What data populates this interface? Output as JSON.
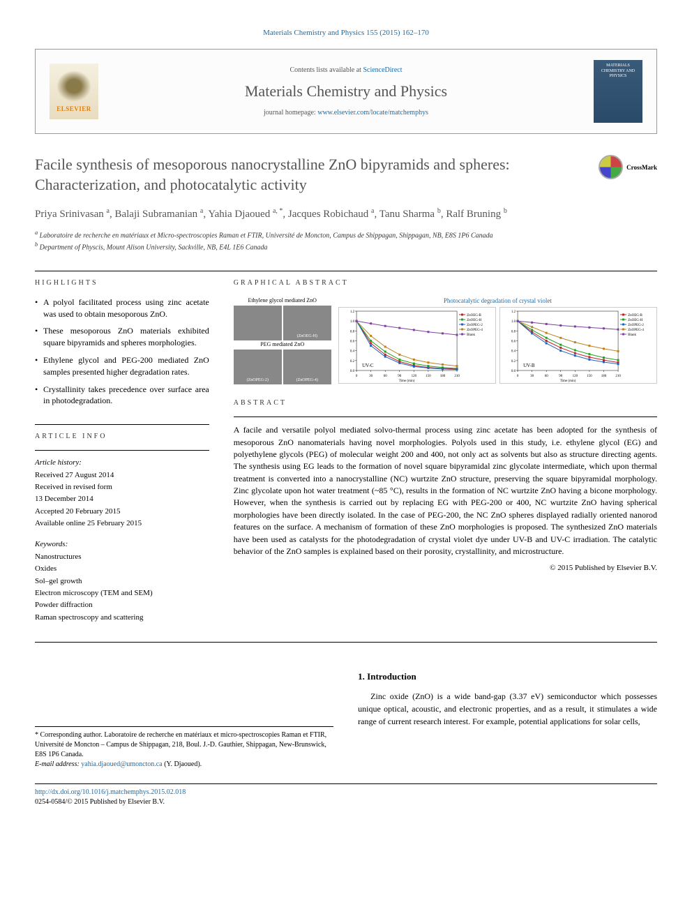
{
  "citation": "Materials Chemistry and Physics 155 (2015) 162–170",
  "header": {
    "contents_prefix": "Contents lists available at ",
    "contents_link": "ScienceDirect",
    "journal_name": "Materials Chemistry and Physics",
    "homepage_prefix": "journal homepage: ",
    "homepage_link": "www.elsevier.com/locate/matchemphys",
    "elsevier": "ELSEVIER",
    "cover_text": "MATERIALS CHEMISTRY AND PHYSICS"
  },
  "article": {
    "title": "Facile synthesis of mesoporous nanocrystalline ZnO bipyramids and spheres: Characterization, and photocatalytic activity",
    "crossmark": "CrossMark",
    "authors_html": "Priya Srinivasan <sup>a</sup>, Balaji Subramanian <sup>a</sup>, Yahia Djaoued <sup>a, *</sup>, Jacques Robichaud <sup>a</sup>, Tanu Sharma <sup>b</sup>, Ralf Bruning <sup>b</sup>",
    "affiliations": {
      "a": "Laboratoire de recherche en matériaux et Micro-spectroscopies Raman et FTIR, Université de Moncton, Campus de Shippagan, Shippagan, NB, E8S 1P6 Canada",
      "b": "Department of Physcis, Mount Alison University, Sackville, NB, E4L 1E6 Canada"
    }
  },
  "highlights": {
    "heading": "HIGHLIGHTS",
    "items": [
      "A polyol facilitated process using zinc acetate was used to obtain mesoporous ZnO.",
      "These mesoporous ZnO materials exhibited square bipyramids and spheres morphologies.",
      "Ethylene glycol and PEG-200 mediated ZnO samples presented higher degradation rates.",
      "Crystallinity takes precedence over surface area in photodegradation."
    ]
  },
  "graphical_abstract": {
    "heading": "GRAPHICAL ABSTRACT",
    "img_label1": "Ethylene glycol mediated ZnO",
    "img_label2": "PEG mediated ZnO",
    "img_sub1": "(ZnOPEG-2)",
    "img_sub2": "(ZnOEG-H)",
    "img_sub3": "(ZnOPEG-2)",
    "img_sub4": "(ZnOPEG-4)",
    "img_mid": "PEG-200",
    "img_mid2": "PEG-400",
    "img_arrow": "Annealing",
    "chart_title": "Photocatalytic degradation of crystal violet",
    "chart1_label": "UV-C",
    "chart2_label": "UV-B",
    "xaxis": "Time (min)",
    "yaxis": "Photocatalysis (percent)",
    "xlim": [
      0,
      210
    ],
    "ylim": [
      0,
      1.2
    ],
    "xticks": [
      0,
      30,
      60,
      90,
      120,
      150,
      180,
      210
    ],
    "legend": [
      "ZnOEG-B",
      "ZnOEG-H",
      "ZnOPEG-2",
      "ZnOPEG-4",
      "Blank"
    ],
    "colors": [
      "#c02020",
      "#20a020",
      "#2060c0",
      "#c08020",
      "#8040a0"
    ],
    "chart1_series": {
      "ZnOEG-B": [
        [
          0,
          1.0
        ],
        [
          30,
          0.55
        ],
        [
          60,
          0.32
        ],
        [
          90,
          0.18
        ],
        [
          120,
          0.1
        ],
        [
          150,
          0.06
        ],
        [
          180,
          0.04
        ],
        [
          210,
          0.03
        ]
      ],
      "ZnOEG-H": [
        [
          0,
          1.0
        ],
        [
          30,
          0.6
        ],
        [
          60,
          0.38
        ],
        [
          90,
          0.22
        ],
        [
          120,
          0.14
        ],
        [
          150,
          0.09
        ],
        [
          180,
          0.06
        ],
        [
          210,
          0.04
        ]
      ],
      "ZnOPEG-2": [
        [
          0,
          1.0
        ],
        [
          30,
          0.5
        ],
        [
          60,
          0.28
        ],
        [
          90,
          0.15
        ],
        [
          120,
          0.08
        ],
        [
          150,
          0.05
        ],
        [
          180,
          0.03
        ],
        [
          210,
          0.02
        ]
      ],
      "ZnOPEG-4": [
        [
          0,
          1.0
        ],
        [
          30,
          0.7
        ],
        [
          60,
          0.48
        ],
        [
          90,
          0.32
        ],
        [
          120,
          0.22
        ],
        [
          150,
          0.16
        ],
        [
          180,
          0.12
        ],
        [
          210,
          0.09
        ]
      ],
      "Blank": [
        [
          0,
          1.0
        ],
        [
          30,
          0.95
        ],
        [
          60,
          0.9
        ],
        [
          90,
          0.86
        ],
        [
          120,
          0.82
        ],
        [
          150,
          0.78
        ],
        [
          180,
          0.75
        ],
        [
          210,
          0.72
        ]
      ]
    },
    "chart2_series": {
      "ZnOEG-B": [
        [
          0,
          1.0
        ],
        [
          30,
          0.78
        ],
        [
          60,
          0.6
        ],
        [
          90,
          0.46
        ],
        [
          120,
          0.35
        ],
        [
          150,
          0.27
        ],
        [
          180,
          0.21
        ],
        [
          210,
          0.16
        ]
      ],
      "ZnOEG-H": [
        [
          0,
          1.0
        ],
        [
          30,
          0.82
        ],
        [
          60,
          0.66
        ],
        [
          90,
          0.52
        ],
        [
          120,
          0.41
        ],
        [
          150,
          0.33
        ],
        [
          180,
          0.26
        ],
        [
          210,
          0.21
        ]
      ],
      "ZnOPEG-2": [
        [
          0,
          1.0
        ],
        [
          30,
          0.75
        ],
        [
          60,
          0.55
        ],
        [
          90,
          0.4
        ],
        [
          120,
          0.3
        ],
        [
          150,
          0.22
        ],
        [
          180,
          0.17
        ],
        [
          210,
          0.13
        ]
      ],
      "ZnOPEG-4": [
        [
          0,
          1.0
        ],
        [
          30,
          0.88
        ],
        [
          60,
          0.76
        ],
        [
          90,
          0.66
        ],
        [
          120,
          0.57
        ],
        [
          150,
          0.5
        ],
        [
          180,
          0.44
        ],
        [
          210,
          0.39
        ]
      ],
      "Blank": [
        [
          0,
          1.0
        ],
        [
          30,
          0.97
        ],
        [
          60,
          0.94
        ],
        [
          90,
          0.91
        ],
        [
          120,
          0.89
        ],
        [
          150,
          0.87
        ],
        [
          180,
          0.85
        ],
        [
          210,
          0.83
        ]
      ]
    }
  },
  "article_info": {
    "heading": "ARTICLE INFO",
    "history_label": "Article history:",
    "history": [
      "Received 27 August 2014",
      "Received in revised form",
      "13 December 2014",
      "Accepted 20 February 2015",
      "Available online 25 February 2015"
    ],
    "keywords_label": "Keywords:",
    "keywords": [
      "Nanostructures",
      "Oxides",
      "Sol–gel growth",
      "Electron microscopy (TEM and SEM)",
      "Powder diffraction",
      "Raman spectroscopy and scattering"
    ]
  },
  "abstract": {
    "heading": "ABSTRACT",
    "text": "A facile and versatile polyol mediated solvo-thermal process using zinc acetate has been adopted for the synthesis of mesoporous ZnO nanomaterials having novel morphologies. Polyols used in this study, i.e. ethylene glycol (EG) and polyethylene glycols (PEG) of molecular weight 200 and 400, not only act as solvents but also as structure directing agents. The synthesis using EG leads to the formation of novel square bipyramidal zinc glycolate intermediate, which upon thermal treatment is converted into a nanocrystalline (NC) wurtzite ZnO structure, preserving the square bipyramidal morphology. Zinc glycolate upon hot water treatment (~85 °C), results in the formation of NC wurtzite ZnO having a bicone morphology. However, when the synthesis is carried out by replacing EG with PEG-200 or 400, NC wurtzite ZnO having spherical morphologies have been directly isolated. In the case of PEG-200, the NC ZnO spheres displayed radially oriented nanorod features on the surface. A mechanism of formation of these ZnO morphologies is proposed. The synthesized ZnO materials have been used as catalysts for the photodegradation of crystal violet dye under UV-B and UV-C irradiation. The catalytic behavior of the ZnO samples is explained based on their porosity, crystallinity, and microstructure.",
    "copyright": "© 2015 Published by Elsevier B.V."
  },
  "introduction": {
    "heading": "1. Introduction",
    "text": "Zinc oxide (ZnO) is a wide band-gap (3.37 eV) semiconductor which possesses unique optical, acoustic, and electronic properties, and as a result, it stimulates a wide range of current research interest. For example, potential applications for solar cells,"
  },
  "corresponding": {
    "text": "* Corresponding author. Laboratoire de recherche en matériaux et micro-spectroscopies Raman et FTIR, Université de Moncton – Campus de Shippagan, 218, Boul. J.-D. Gauthier, Shippagan, New-Brunswick, E8S 1P6 Canada.",
    "email_label": "E-mail address: ",
    "email": "yahia.djaoued@umoncton.ca",
    "email_suffix": " (Y. Djaoued)."
  },
  "doi": {
    "link": "http://dx.doi.org/10.1016/j.matchemphys.2015.02.018",
    "issn": "0254-0584/© 2015 Published by Elsevier B.V."
  }
}
